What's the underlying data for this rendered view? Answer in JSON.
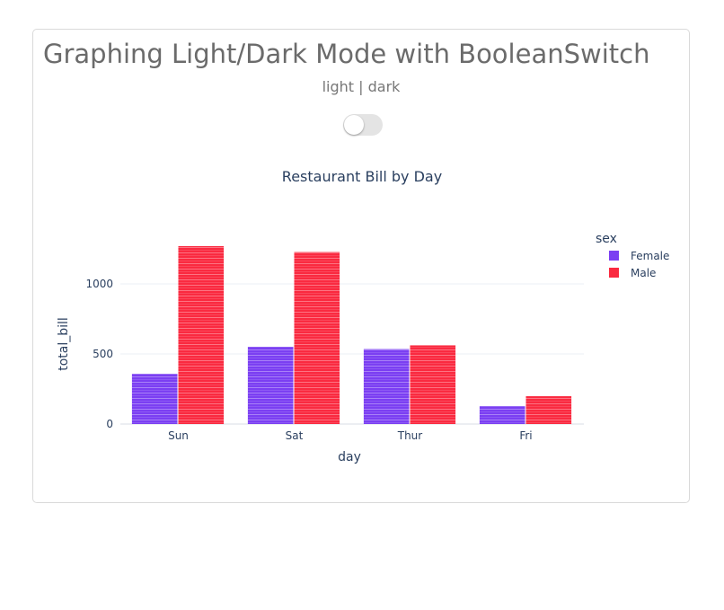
{
  "header": {
    "title": "Graphing Light/Dark Mode with BooleanSwitch"
  },
  "toggle": {
    "label": "light | dark",
    "value": false
  },
  "chart_data": {
    "type": "bar",
    "barmode": "group",
    "title": "Restaurant Bill by Day",
    "xlabel": "day",
    "ylabel": "total_bill",
    "categories": [
      "Sun",
      "Sat",
      "Thur",
      "Fri"
    ],
    "yticks": [
      0,
      500,
      1000
    ],
    "ylim": [
      0,
      1340
    ],
    "legend_title": "sex",
    "legend_placement": "right",
    "grid": true,
    "series": [
      {
        "name": "Female",
        "color": "#7b3ff2",
        "values": [
          357.7,
          551.05,
          534.89,
          127.31
        ]
      },
      {
        "name": "Male",
        "color": "#fa2a40",
        "values": [
          1269.46,
          1227.35,
          561.44,
          198.57
        ]
      }
    ]
  }
}
